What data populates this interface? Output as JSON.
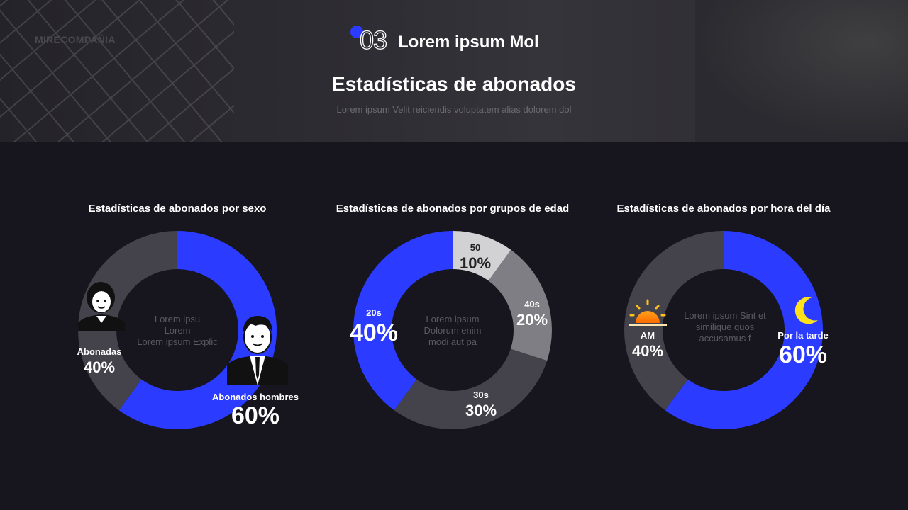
{
  "header": {
    "logo": "MIRECOMPAÑIA",
    "section_number": "03",
    "section_title": "Lorem ipsum Mol",
    "title": "Estadísticas de abonados",
    "subtitle": "Lorem ipsum Velit reiciendis voluptatem alias dolorem dol"
  },
  "colors": {
    "blue": "#2b3bff",
    "dark": "#44434b",
    "mid": "#7f7e84",
    "light": "#d2d2d4"
  },
  "chart_data": [
    {
      "type": "pie",
      "title": "Estadísticas de abonados por sexo",
      "center_text": [
        "Lorem ipsu",
        "Lorem",
        "Lorem ipsum Explic"
      ],
      "slices": [
        {
          "label": "Abonados hombres",
          "value": 60,
          "display": "60%",
          "color": "#2b3bff",
          "icon": "man-avatar-icon"
        },
        {
          "label": "Abonadas",
          "value": 40,
          "display": "40%",
          "color": "#44434b",
          "icon": "woman-avatar-icon"
        }
      ]
    },
    {
      "type": "pie",
      "title": "Estadísticas de abonados por grupos de edad",
      "center_text": [
        "Lorem ipsum",
        "Dolorum enim",
        "modi aut pa"
      ],
      "slices": [
        {
          "label": "50",
          "value": 10,
          "display": "10%",
          "color": "#d2d2d4"
        },
        {
          "label": "40s",
          "value": 20,
          "display": "20%",
          "color": "#7f7e84"
        },
        {
          "label": "30s",
          "value": 30,
          "display": "30%",
          "color": "#44434b"
        },
        {
          "label": "20s",
          "value": 40,
          "display": "40%",
          "color": "#2b3bff"
        }
      ]
    },
    {
      "type": "pie",
      "title": "Estadísticas de abonados por hora del día",
      "center_text": [
        "Lorem ipsum Sint et",
        "similique quos",
        "accusamus f"
      ],
      "slices": [
        {
          "label": "Por la tarde",
          "value": 60,
          "display": "60%",
          "color": "#2b3bff",
          "icon": "moon-icon"
        },
        {
          "label": "AM",
          "value": 40,
          "display": "40%",
          "color": "#44434b",
          "icon": "sunrise-icon"
        }
      ]
    }
  ]
}
